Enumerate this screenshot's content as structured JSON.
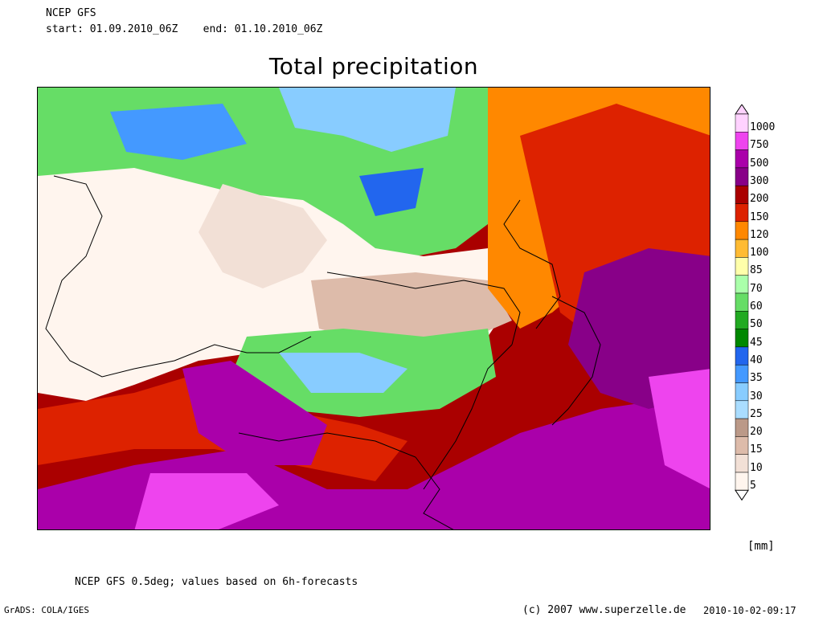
{
  "header": {
    "model": "NCEP GFS",
    "period": "start: 01.09.2010_06Z    end: 01.10.2010_06Z"
  },
  "title": "Total precipitation",
  "legend": {
    "unit": "[mm]",
    "levels": [
      {
        "label": "1000",
        "color": "#ffd2ff"
      },
      {
        "label": "750",
        "color": "#ee44ee"
      },
      {
        "label": "500",
        "color": "#aa00aa"
      },
      {
        "label": "300",
        "color": "#880088"
      },
      {
        "label": "200",
        "color": "#aa0000"
      },
      {
        "label": "150",
        "color": "#dd2200"
      },
      {
        "label": "120",
        "color": "#ff8800"
      },
      {
        "label": "100",
        "color": "#ffbb33"
      },
      {
        "label": "85",
        "color": "#ffffaa"
      },
      {
        "label": "70",
        "color": "#aaffaa"
      },
      {
        "label": "60",
        "color": "#66dd66"
      },
      {
        "label": "50",
        "color": "#22aa22"
      },
      {
        "label": "45",
        "color": "#008800"
      },
      {
        "label": "40",
        "color": "#2266ee"
      },
      {
        "label": "35",
        "color": "#4499ff"
      },
      {
        "label": "30",
        "color": "#88ccff"
      },
      {
        "label": "25",
        "color": "#aaddff"
      },
      {
        "label": "20",
        "color": "#bb9988"
      },
      {
        "label": "15",
        "color": "#ddbbaa"
      },
      {
        "label": "10",
        "color": "#f2e0d6"
      },
      {
        "label": "5",
        "color": "#fff5ee"
      }
    ]
  },
  "footer": {
    "note": "NCEP GFS 0.5deg; values based on 6h-forecasts",
    "grads": "GrADS: COLA/IGES",
    "copyright": "(c) 2007 www.superzelle.de",
    "timestamp": "2010-10-02-09:17"
  }
}
